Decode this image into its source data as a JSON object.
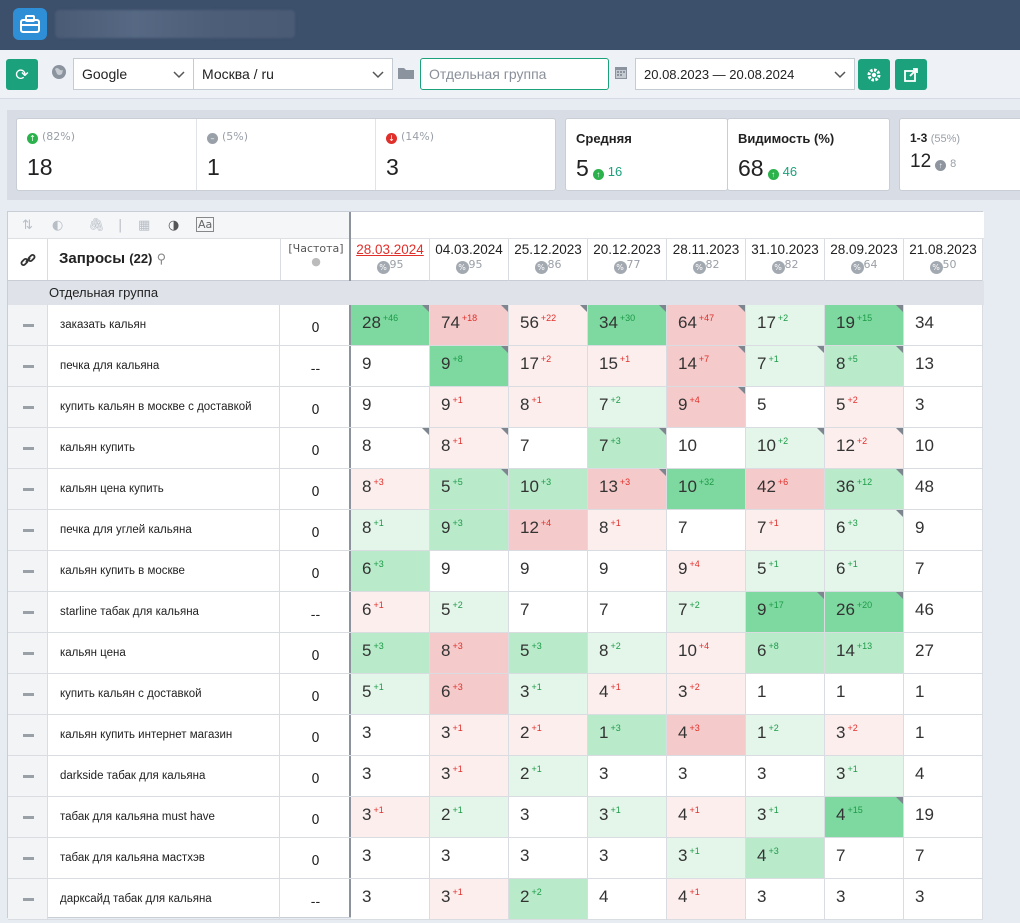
{
  "toolbar": {
    "search_engine": "Google",
    "region": "Москва / ru",
    "group_placeholder": "Отдельная группа",
    "date_range": "20.08.2023 — 20.08.2024"
  },
  "stats": {
    "up": {
      "pct": "(82%)",
      "value": "18"
    },
    "neutral": {
      "pct": "(5%)",
      "value": "1"
    },
    "down": {
      "pct": "(14%)",
      "value": "3"
    },
    "avg": {
      "title": "Средняя",
      "value": "5",
      "delta": "16"
    },
    "vis": {
      "title": "Видимость (%)",
      "value": "68",
      "delta": "46"
    },
    "top3": {
      "title": "1-3",
      "pct": "(55%)",
      "value": "12",
      "delta": "8"
    }
  },
  "table": {
    "queries_label": "Запросы",
    "queries_count": "(22)",
    "freq_label": "[Частота]",
    "group_name": "Отдельная группа",
    "dates": [
      {
        "date": "28.03.2024",
        "pct": "95",
        "active": true
      },
      {
        "date": "04.03.2024",
        "pct": "95"
      },
      {
        "date": "25.12.2023",
        "pct": "86"
      },
      {
        "date": "20.12.2023",
        "pct": "77"
      },
      {
        "date": "28.11.2023",
        "pct": "82"
      },
      {
        "date": "31.10.2023",
        "pct": "82"
      },
      {
        "date": "28.09.2023",
        "pct": "64"
      },
      {
        "date": "21.08.2023",
        "pct": "50"
      }
    ],
    "rows": [
      {
        "q": "заказать кальян",
        "f": "0",
        "cells": [
          [
            "28",
            "+46",
            "up",
            "gs",
            1
          ],
          [
            "74",
            "+18",
            "down",
            "rs",
            1
          ],
          [
            "56",
            "+22",
            "down",
            "rl",
            1
          ],
          [
            "34",
            "+30",
            "up",
            "gs",
            1
          ],
          [
            "64",
            "+47",
            "down",
            "rs",
            1
          ],
          [
            "17",
            "+2",
            "up",
            "gl",
            0
          ],
          [
            "19",
            "+15",
            "up",
            "gs",
            1
          ],
          [
            "34",
            "",
            "",
            "w",
            0
          ]
        ]
      },
      {
        "q": "печка для кальяна",
        "f": "--",
        "cells": [
          [
            "9",
            "",
            "",
            "w",
            0
          ],
          [
            "9",
            "+8",
            "up",
            "gs",
            1
          ],
          [
            "17",
            "+2",
            "down",
            "rl",
            0
          ],
          [
            "15",
            "+1",
            "down",
            "rl",
            0
          ],
          [
            "14",
            "+7",
            "down",
            "rs",
            1
          ],
          [
            "7",
            "+1",
            "up",
            "gl",
            1
          ],
          [
            "8",
            "+5",
            "up",
            "gm",
            1
          ],
          [
            "13",
            "",
            "",
            "w",
            0
          ]
        ]
      },
      {
        "q": "купить кальян в москве с доставкой",
        "f": "0",
        "cells": [
          [
            "9",
            "",
            "",
            "w",
            0
          ],
          [
            "9",
            "+1",
            "down",
            "rl",
            0
          ],
          [
            "8",
            "+1",
            "down",
            "rl",
            0
          ],
          [
            "7",
            "+2",
            "up",
            "gl",
            0
          ],
          [
            "9",
            "+4",
            "down",
            "rs",
            1
          ],
          [
            "5",
            "",
            "",
            "w",
            0
          ],
          [
            "5",
            "+2",
            "down",
            "rl",
            0
          ],
          [
            "3",
            "",
            "",
            "w",
            0
          ]
        ]
      },
      {
        "q": "кальян купить",
        "f": "0",
        "cells": [
          [
            "8",
            "",
            "",
            "w",
            1
          ],
          [
            "8",
            "+1",
            "down",
            "rl",
            1
          ],
          [
            "7",
            "",
            "",
            "w",
            0
          ],
          [
            "7",
            "+3",
            "up",
            "gm",
            1
          ],
          [
            "10",
            "",
            "",
            "w",
            0
          ],
          [
            "10",
            "+2",
            "up",
            "gl",
            1
          ],
          [
            "12",
            "+2",
            "down",
            "rl",
            1
          ],
          [
            "10",
            "",
            "",
            "w",
            0
          ]
        ]
      },
      {
        "q": "кальян цена купить",
        "f": "0",
        "cells": [
          [
            "8",
            "+3",
            "down",
            "rl",
            0
          ],
          [
            "5",
            "+5",
            "up",
            "gm",
            1
          ],
          [
            "10",
            "+3",
            "up",
            "gm",
            0
          ],
          [
            "13",
            "+3",
            "down",
            "rs",
            1
          ],
          [
            "10",
            "+32",
            "up",
            "gs",
            0
          ],
          [
            "42",
            "+6",
            "down",
            "rs",
            0
          ],
          [
            "36",
            "+12",
            "up",
            "gm",
            1
          ],
          [
            "48",
            "",
            "",
            "w",
            0
          ]
        ]
      },
      {
        "q": "печка для углей кальяна",
        "f": "0",
        "cells": [
          [
            "8",
            "+1",
            "up",
            "gl",
            0
          ],
          [
            "9",
            "+3",
            "up",
            "gm",
            0
          ],
          [
            "12",
            "+4",
            "down",
            "rs",
            0
          ],
          [
            "8",
            "+1",
            "down",
            "rl",
            0
          ],
          [
            "7",
            "",
            "",
            "w",
            0
          ],
          [
            "7",
            "+1",
            "down",
            "rl",
            0
          ],
          [
            "6",
            "+3",
            "up",
            "gl",
            1
          ],
          [
            "9",
            "",
            "",
            "w",
            0
          ]
        ]
      },
      {
        "q": "кальян купить в москве",
        "f": "0",
        "cells": [
          [
            "6",
            "+3",
            "up",
            "gm",
            0
          ],
          [
            "9",
            "",
            "",
            "w",
            0
          ],
          [
            "9",
            "",
            "",
            "w",
            0
          ],
          [
            "9",
            "",
            "",
            "w",
            0
          ],
          [
            "9",
            "+4",
            "down",
            "rl",
            0
          ],
          [
            "5",
            "+1",
            "up",
            "gl",
            0
          ],
          [
            "6",
            "+1",
            "up",
            "gl",
            0
          ],
          [
            "7",
            "",
            "",
            "w",
            0
          ]
        ]
      },
      {
        "q": "starline табак для кальяна",
        "f": "--",
        "cells": [
          [
            "6",
            "+1",
            "down",
            "rl",
            0
          ],
          [
            "5",
            "+2",
            "up",
            "gl",
            0
          ],
          [
            "7",
            "",
            "",
            "w",
            0
          ],
          [
            "7",
            "",
            "",
            "w",
            0
          ],
          [
            "7",
            "+2",
            "up",
            "gl",
            0
          ],
          [
            "9",
            "+17",
            "up",
            "gs",
            1
          ],
          [
            "26",
            "+20",
            "up",
            "gs",
            1
          ],
          [
            "46",
            "",
            "",
            "w",
            0
          ]
        ]
      },
      {
        "q": "кальян цена",
        "f": "0",
        "cells": [
          [
            "5",
            "+3",
            "up",
            "gm",
            0
          ],
          [
            "8",
            "+3",
            "down",
            "rs",
            0
          ],
          [
            "5",
            "+3",
            "up",
            "gm",
            0
          ],
          [
            "8",
            "+2",
            "up",
            "gl",
            0
          ],
          [
            "10",
            "+4",
            "down",
            "rl",
            0
          ],
          [
            "6",
            "+8",
            "up",
            "gm",
            0
          ],
          [
            "14",
            "+13",
            "up",
            "gm",
            0
          ],
          [
            "27",
            "",
            "",
            "w",
            0
          ]
        ]
      },
      {
        "q": "купить кальян с доставкой",
        "f": "0",
        "cells": [
          [
            "5",
            "+1",
            "up",
            "gl",
            0
          ],
          [
            "6",
            "+3",
            "down",
            "rs",
            0
          ],
          [
            "3",
            "+1",
            "up",
            "gl",
            0
          ],
          [
            "4",
            "+1",
            "down",
            "rl",
            0
          ],
          [
            "3",
            "+2",
            "down",
            "rl",
            0
          ],
          [
            "1",
            "",
            "",
            "w",
            0
          ],
          [
            "1",
            "",
            "",
            "w",
            0
          ],
          [
            "1",
            "",
            "",
            "w",
            0
          ]
        ]
      },
      {
        "q": "кальян купить интернет магазин",
        "f": "0",
        "cells": [
          [
            "3",
            "",
            "",
            "w",
            0
          ],
          [
            "3",
            "+1",
            "down",
            "rl",
            0
          ],
          [
            "2",
            "+1",
            "down",
            "rl",
            0
          ],
          [
            "1",
            "+3",
            "up",
            "gm",
            0
          ],
          [
            "4",
            "+3",
            "down",
            "rs",
            0
          ],
          [
            "1",
            "+2",
            "up",
            "gl",
            0
          ],
          [
            "3",
            "+2",
            "down",
            "rl",
            0
          ],
          [
            "1",
            "",
            "",
            "w",
            0
          ]
        ]
      },
      {
        "q": "darkside табак для кальяна",
        "f": "0",
        "cells": [
          [
            "3",
            "",
            "",
            "w",
            0
          ],
          [
            "3",
            "+1",
            "down",
            "rl",
            0
          ],
          [
            "2",
            "+1",
            "up",
            "gl",
            0
          ],
          [
            "3",
            "",
            "",
            "w",
            0
          ],
          [
            "3",
            "",
            "",
            "w",
            0
          ],
          [
            "3",
            "",
            "",
            "w",
            0
          ],
          [
            "3",
            "+1",
            "up",
            "gl",
            0
          ],
          [
            "4",
            "",
            "",
            "w",
            0
          ]
        ]
      },
      {
        "q": "табак для кальяна must have",
        "f": "0",
        "cells": [
          [
            "3",
            "+1",
            "down",
            "rl",
            0
          ],
          [
            "2",
            "+1",
            "up",
            "gl",
            0
          ],
          [
            "3",
            "",
            "",
            "w",
            0
          ],
          [
            "3",
            "+1",
            "up",
            "gl",
            0
          ],
          [
            "4",
            "+1",
            "down",
            "rl",
            0
          ],
          [
            "3",
            "+1",
            "up",
            "gl",
            0
          ],
          [
            "4",
            "+15",
            "up",
            "gs",
            1
          ],
          [
            "19",
            "",
            "",
            "w",
            0
          ]
        ]
      },
      {
        "q": "табак для кальяна мастхэв",
        "f": "0",
        "cells": [
          [
            "3",
            "",
            "",
            "w",
            0
          ],
          [
            "3",
            "",
            "",
            "w",
            0
          ],
          [
            "3",
            "",
            "",
            "w",
            0
          ],
          [
            "3",
            "",
            "",
            "w",
            0
          ],
          [
            "3",
            "+1",
            "up",
            "gl",
            0
          ],
          [
            "4",
            "+3",
            "up",
            "gm",
            0
          ],
          [
            "7",
            "",
            "",
            "w",
            0
          ],
          [
            "7",
            "",
            "",
            "w",
            0
          ]
        ]
      },
      {
        "q": "даркcайд табак для кальяна",
        "f": "--",
        "cells": [
          [
            "3",
            "",
            "",
            "w",
            0
          ],
          [
            "3",
            "+1",
            "down",
            "rl",
            0
          ],
          [
            "2",
            "+2",
            "up",
            "gm",
            0
          ],
          [
            "4",
            "",
            "",
            "w",
            0
          ],
          [
            "4",
            "+1",
            "down",
            "rl",
            0
          ],
          [
            "3",
            "",
            "",
            "w",
            0
          ],
          [
            "3",
            "",
            "",
            "w",
            0
          ],
          [
            "3",
            "",
            "",
            "w",
            0
          ]
        ]
      }
    ]
  }
}
